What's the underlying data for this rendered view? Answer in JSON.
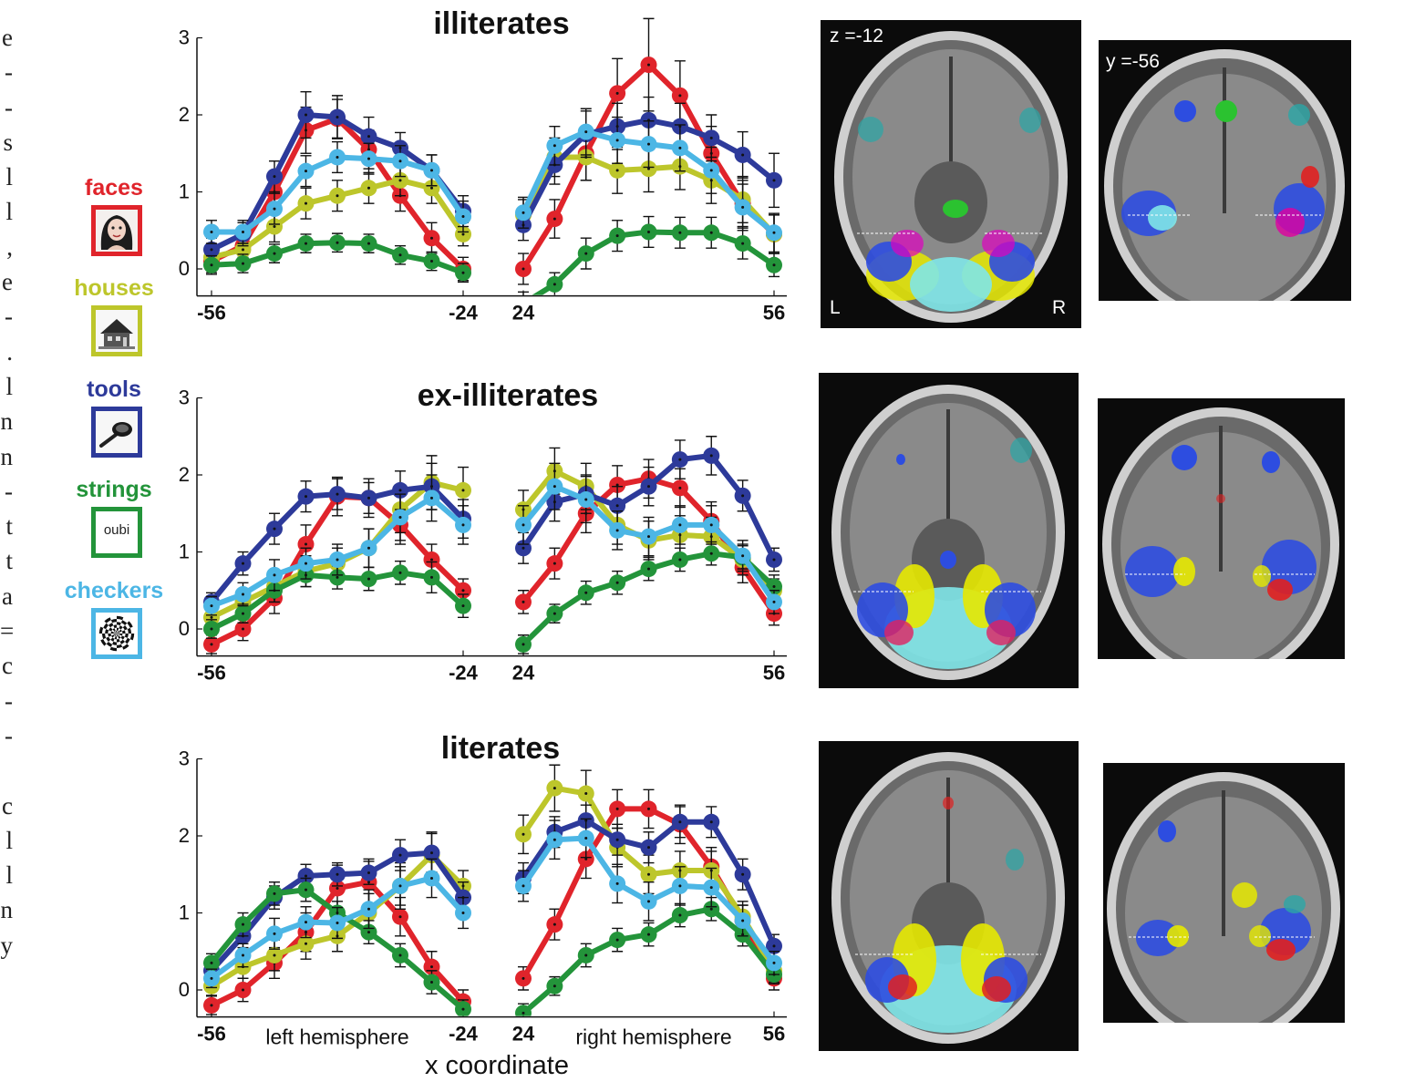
{
  "margin_text": [
    "e",
    "-",
    "-",
    "s",
    "l",
    "l",
    ",",
    "e",
    "-",
    ".",
    "l",
    "n",
    "n",
    "-",
    "t",
    "t",
    "a",
    "=",
    "c",
    "-",
    "-",
    "",
    "c",
    "l",
    "l",
    "n",
    "y"
  ],
  "legend": [
    {
      "label": "faces",
      "color": "#e0242b",
      "icon": "face-photo-icon"
    },
    {
      "label": "houses",
      "color": "#bdc62b",
      "icon": "house-photo-icon"
    },
    {
      "label": "tools",
      "color": "#2d3a9a",
      "icon": "tool-photo-icon"
    },
    {
      "label": "strings",
      "color": "#23943a",
      "icon": "oubi-string-icon",
      "icon_text": "oubi"
    },
    {
      "label": "checkers",
      "color": "#4cb6e5",
      "icon": "checkerboard-icon"
    }
  ],
  "x_axis_label": "x coordinate",
  "hemisphere_labels": {
    "left": "left hemisphere",
    "right": "right hemisphere"
  },
  "brain_labels": {
    "axial": "z =-12",
    "coronal": "y =-56",
    "left": "L",
    "right": "R"
  },
  "chart_data": [
    {
      "type": "line",
      "title": "illiterates",
      "x_left": [
        -56,
        -52,
        -48,
        -44,
        -40,
        -36,
        -32,
        -28,
        -24
      ],
      "x_right": [
        24,
        28,
        32,
        36,
        40,
        44,
        48,
        52,
        56
      ],
      "x_ticks_left": [
        "-56",
        "-24"
      ],
      "x_ticks_right": [
        "24",
        "56"
      ],
      "y_ticks": [
        "0",
        "1",
        "2",
        "3"
      ],
      "ylim": [
        -0.35,
        3.0
      ],
      "series": [
        {
          "name": "faces",
          "color": "#e0242b",
          "left": [
            0.1,
            0.3,
            1.0,
            1.8,
            1.95,
            1.55,
            0.95,
            0.4,
            0.0
          ],
          "right": [
            0.0,
            0.65,
            1.5,
            2.28,
            2.65,
            2.25,
            1.5,
            0.85,
            0.45
          ],
          "err_left": [
            0.15,
            0.15,
            0.2,
            0.3,
            0.25,
            0.25,
            0.2,
            0.2,
            0.15
          ],
          "err_right": [
            0.2,
            0.25,
            0.35,
            0.45,
            0.6,
            0.45,
            0.35,
            0.3,
            0.25
          ]
        },
        {
          "name": "houses",
          "color": "#bdc62b",
          "left": [
            0.15,
            0.25,
            0.55,
            0.85,
            0.95,
            1.05,
            1.15,
            1.05,
            0.45
          ],
          "right": [
            0.7,
            1.45,
            1.45,
            1.28,
            1.3,
            1.33,
            1.15,
            0.9,
            0.45
          ],
          "err_left": [
            0.15,
            0.15,
            0.2,
            0.2,
            0.2,
            0.2,
            0.2,
            0.2,
            0.15
          ],
          "err_right": [
            0.2,
            0.25,
            0.3,
            0.3,
            0.3,
            0.3,
            0.3,
            0.3,
            0.25
          ]
        },
        {
          "name": "tools",
          "color": "#2d3a9a",
          "left": [
            0.25,
            0.45,
            1.2,
            2.0,
            1.97,
            1.72,
            1.57,
            1.28,
            0.75
          ],
          "right": [
            0.57,
            1.35,
            1.75,
            1.85,
            1.93,
            1.85,
            1.7,
            1.48,
            1.15
          ],
          "err_left": [
            0.15,
            0.15,
            0.2,
            0.3,
            0.28,
            0.25,
            0.2,
            0.2,
            0.2
          ],
          "err_right": [
            0.2,
            0.25,
            0.3,
            0.3,
            0.3,
            0.3,
            0.3,
            0.3,
            0.35
          ]
        },
        {
          "name": "strings",
          "color": "#23943a",
          "left": [
            0.05,
            0.07,
            0.2,
            0.33,
            0.34,
            0.33,
            0.18,
            0.1,
            -0.05
          ],
          "right": [
            -0.45,
            -0.2,
            0.2,
            0.43,
            0.48,
            0.47,
            0.47,
            0.33,
            0.05
          ],
          "err_left": [
            0.12,
            0.12,
            0.12,
            0.12,
            0.12,
            0.12,
            0.12,
            0.12,
            0.12
          ],
          "err_right": [
            0.15,
            0.15,
            0.2,
            0.2,
            0.2,
            0.2,
            0.2,
            0.2,
            0.15
          ]
        },
        {
          "name": "checkers",
          "color": "#4cb6e5",
          "left": [
            0.48,
            0.48,
            0.78,
            1.27,
            1.45,
            1.43,
            1.4,
            1.28,
            0.68
          ],
          "right": [
            0.73,
            1.6,
            1.78,
            1.67,
            1.62,
            1.57,
            1.28,
            0.8,
            0.47
          ],
          "err_left": [
            0.15,
            0.15,
            0.2,
            0.2,
            0.2,
            0.2,
            0.2,
            0.2,
            0.2
          ],
          "err_right": [
            0.2,
            0.25,
            0.3,
            0.3,
            0.3,
            0.3,
            0.3,
            0.3,
            0.25
          ]
        }
      ]
    },
    {
      "type": "line",
      "title": "ex-illiterates",
      "x_left": [
        -56,
        -52,
        -48,
        -44,
        -40,
        -36,
        -32,
        -28,
        -24
      ],
      "x_right": [
        24,
        28,
        32,
        36,
        40,
        44,
        48,
        52,
        56
      ],
      "x_ticks_left": [
        "-56",
        "-24"
      ],
      "x_ticks_right": [
        "24",
        "56"
      ],
      "y_ticks": [
        "0",
        "1",
        "2",
        "3"
      ],
      "ylim": [
        -0.35,
        3.0
      ],
      "series": [
        {
          "name": "faces",
          "color": "#e0242b",
          "left": [
            -0.2,
            0.0,
            0.4,
            1.1,
            1.72,
            1.7,
            1.35,
            0.9,
            0.5
          ],
          "right": [
            0.35,
            0.85,
            1.5,
            1.87,
            1.95,
            1.83,
            1.4,
            0.8,
            0.2
          ],
          "err_left": [
            0.12,
            0.15,
            0.2,
            0.25,
            0.25,
            0.25,
            0.25,
            0.2,
            0.15
          ],
          "err_right": [
            0.15,
            0.2,
            0.25,
            0.25,
            0.25,
            0.25,
            0.25,
            0.2,
            0.15
          ]
        },
        {
          "name": "houses",
          "color": "#bdc62b",
          "left": [
            0.15,
            0.35,
            0.55,
            0.75,
            0.85,
            1.05,
            1.55,
            1.9,
            1.8
          ],
          "right": [
            1.55,
            2.05,
            1.85,
            1.35,
            1.15,
            1.22,
            1.2,
            0.9,
            0.5
          ],
          "err_left": [
            0.12,
            0.15,
            0.2,
            0.2,
            0.2,
            0.25,
            0.3,
            0.35,
            0.3
          ],
          "err_right": [
            0.25,
            0.3,
            0.3,
            0.25,
            0.25,
            0.25,
            0.25,
            0.2,
            0.15
          ]
        },
        {
          "name": "tools",
          "color": "#2d3a9a",
          "left": [
            0.35,
            0.85,
            1.3,
            1.72,
            1.75,
            1.7,
            1.8,
            1.85,
            1.43
          ],
          "right": [
            1.05,
            1.65,
            1.75,
            1.6,
            1.85,
            2.2,
            2.25,
            1.73,
            0.9
          ],
          "err_left": [
            0.12,
            0.15,
            0.2,
            0.2,
            0.2,
            0.2,
            0.25,
            0.3,
            0.25
          ],
          "err_right": [
            0.2,
            0.25,
            0.25,
            0.25,
            0.25,
            0.25,
            0.25,
            0.2,
            0.15
          ]
        },
        {
          "name": "strings",
          "color": "#23943a",
          "left": [
            0.0,
            0.2,
            0.5,
            0.7,
            0.67,
            0.65,
            0.73,
            0.67,
            0.3
          ],
          "right": [
            -0.2,
            0.2,
            0.47,
            0.6,
            0.78,
            0.9,
            0.98,
            0.93,
            0.55
          ],
          "err_left": [
            0.12,
            0.12,
            0.15,
            0.15,
            0.15,
            0.15,
            0.15,
            0.2,
            0.15
          ],
          "err_right": [
            0.12,
            0.12,
            0.15,
            0.15,
            0.15,
            0.15,
            0.15,
            0.15,
            0.15
          ]
        },
        {
          "name": "checkers",
          "color": "#4cb6e5",
          "left": [
            0.3,
            0.45,
            0.7,
            0.85,
            0.9,
            1.05,
            1.45,
            1.7,
            1.35
          ],
          "right": [
            1.35,
            1.85,
            1.68,
            1.28,
            1.2,
            1.35,
            1.35,
            0.95,
            0.35
          ],
          "err_left": [
            0.12,
            0.15,
            0.2,
            0.2,
            0.2,
            0.25,
            0.3,
            0.3,
            0.25
          ],
          "err_right": [
            0.25,
            0.3,
            0.3,
            0.25,
            0.25,
            0.25,
            0.25,
            0.2,
            0.15
          ]
        }
      ]
    },
    {
      "type": "line",
      "title": "literates",
      "x_left": [
        -56,
        -52,
        -48,
        -44,
        -40,
        -36,
        -32,
        -28,
        -24
      ],
      "x_right": [
        24,
        28,
        32,
        36,
        40,
        44,
        48,
        52,
        56
      ],
      "x_ticks_left": [
        "-56",
        "-24"
      ],
      "x_ticks_right": [
        "24",
        "56"
      ],
      "y_ticks": [
        "0",
        "1",
        "2",
        "3"
      ],
      "ylim": [
        -0.35,
        3.0
      ],
      "series": [
        {
          "name": "faces",
          "color": "#e0242b",
          "left": [
            -0.2,
            0.0,
            0.35,
            0.75,
            1.32,
            1.4,
            0.95,
            0.3,
            -0.15
          ],
          "right": [
            0.15,
            0.85,
            1.7,
            2.35,
            2.35,
            2.15,
            1.6,
            0.9,
            0.15
          ],
          "err_left": [
            0.12,
            0.15,
            0.2,
            0.25,
            0.3,
            0.3,
            0.25,
            0.2,
            0.15
          ],
          "err_right": [
            0.15,
            0.2,
            0.25,
            0.25,
            0.25,
            0.25,
            0.25,
            0.2,
            0.15
          ]
        },
        {
          "name": "houses",
          "color": "#bdc62b",
          "left": [
            0.05,
            0.3,
            0.45,
            0.6,
            0.7,
            1.0,
            1.35,
            1.75,
            1.35
          ],
          "right": [
            2.02,
            2.62,
            2.55,
            1.85,
            1.5,
            1.55,
            1.55,
            0.95,
            0.25
          ],
          "err_left": [
            0.12,
            0.15,
            0.2,
            0.2,
            0.2,
            0.25,
            0.3,
            0.3,
            0.2
          ],
          "err_right": [
            0.25,
            0.3,
            0.3,
            0.25,
            0.25,
            0.25,
            0.25,
            0.2,
            0.15
          ]
        },
        {
          "name": "tools",
          "color": "#2d3a9a",
          "left": [
            0.25,
            0.7,
            1.2,
            1.48,
            1.5,
            1.52,
            1.75,
            1.78,
            1.2
          ],
          "right": [
            1.45,
            2.05,
            2.2,
            1.95,
            1.85,
            2.18,
            2.18,
            1.5,
            0.57
          ],
          "err_left": [
            0.12,
            0.15,
            0.15,
            0.15,
            0.15,
            0.15,
            0.2,
            0.25,
            0.2
          ],
          "err_right": [
            0.2,
            0.2,
            0.2,
            0.2,
            0.2,
            0.2,
            0.2,
            0.2,
            0.15
          ]
        },
        {
          "name": "strings",
          "color": "#23943a",
          "left": [
            0.35,
            0.85,
            1.25,
            1.3,
            1.0,
            0.75,
            0.45,
            0.1,
            -0.25
          ],
          "right": [
            -0.3,
            0.05,
            0.45,
            0.65,
            0.72,
            0.97,
            1.05,
            0.72,
            0.2
          ],
          "err_left": [
            0.12,
            0.15,
            0.15,
            0.15,
            0.15,
            0.15,
            0.15,
            0.15,
            0.12
          ],
          "err_right": [
            0.12,
            0.12,
            0.15,
            0.15,
            0.15,
            0.15,
            0.15,
            0.15,
            0.12
          ]
        },
        {
          "name": "checkers",
          "color": "#4cb6e5",
          "left": [
            0.15,
            0.45,
            0.73,
            0.88,
            0.87,
            1.05,
            1.35,
            1.45,
            1.0
          ],
          "right": [
            1.35,
            1.95,
            1.97,
            1.38,
            1.15,
            1.35,
            1.33,
            0.9,
            0.35
          ],
          "err_left": [
            0.12,
            0.15,
            0.2,
            0.2,
            0.2,
            0.25,
            0.25,
            0.25,
            0.2
          ],
          "err_right": [
            0.2,
            0.25,
            0.25,
            0.25,
            0.25,
            0.25,
            0.25,
            0.2,
            0.15
          ]
        }
      ]
    }
  ]
}
